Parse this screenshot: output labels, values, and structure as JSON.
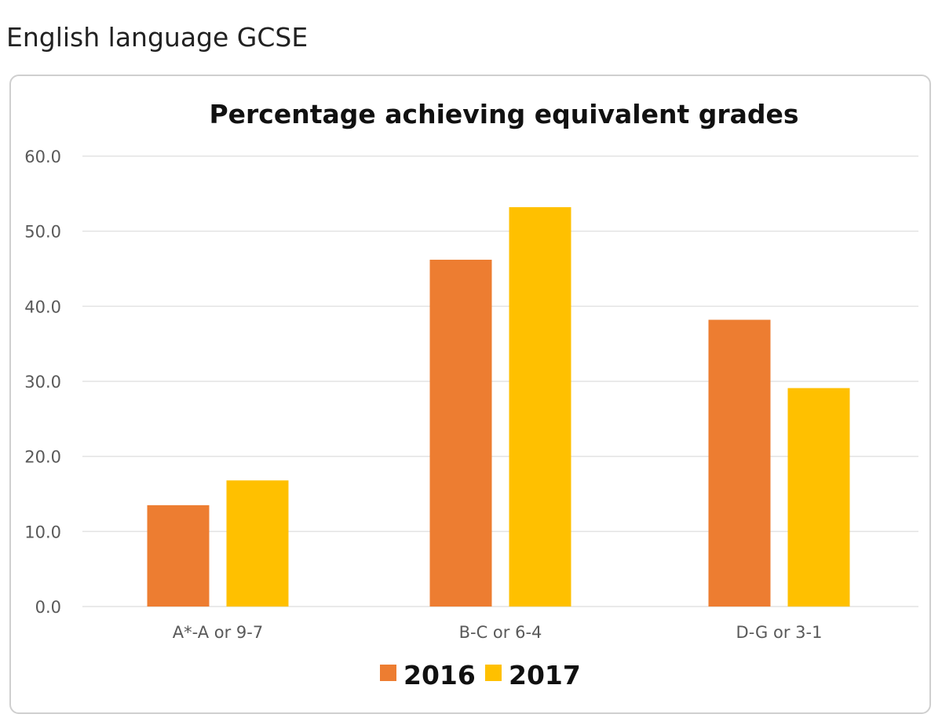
{
  "page": {
    "title": "English language GCSE"
  },
  "chart_data": {
    "type": "bar",
    "title": "Percentage achieving equivalent grades",
    "xlabel": "",
    "ylabel": "",
    "categories": [
      "A*-A or 9-7",
      "B-C or 6-4",
      "D-G or 3-1"
    ],
    "series": [
      {
        "name": "2016",
        "color": "#ED7D31",
        "values": [
          13.5,
          46.2,
          38.2
        ]
      },
      {
        "name": "2017",
        "color": "#FFC000",
        "values": [
          16.8,
          53.2,
          29.1
        ]
      }
    ],
    "ylim": [
      0,
      60
    ],
    "yticks": [
      "0.0",
      "10.0",
      "20.0",
      "30.0",
      "40.0",
      "50.0",
      "60.0"
    ],
    "grid": true,
    "legend": "bottom"
  }
}
